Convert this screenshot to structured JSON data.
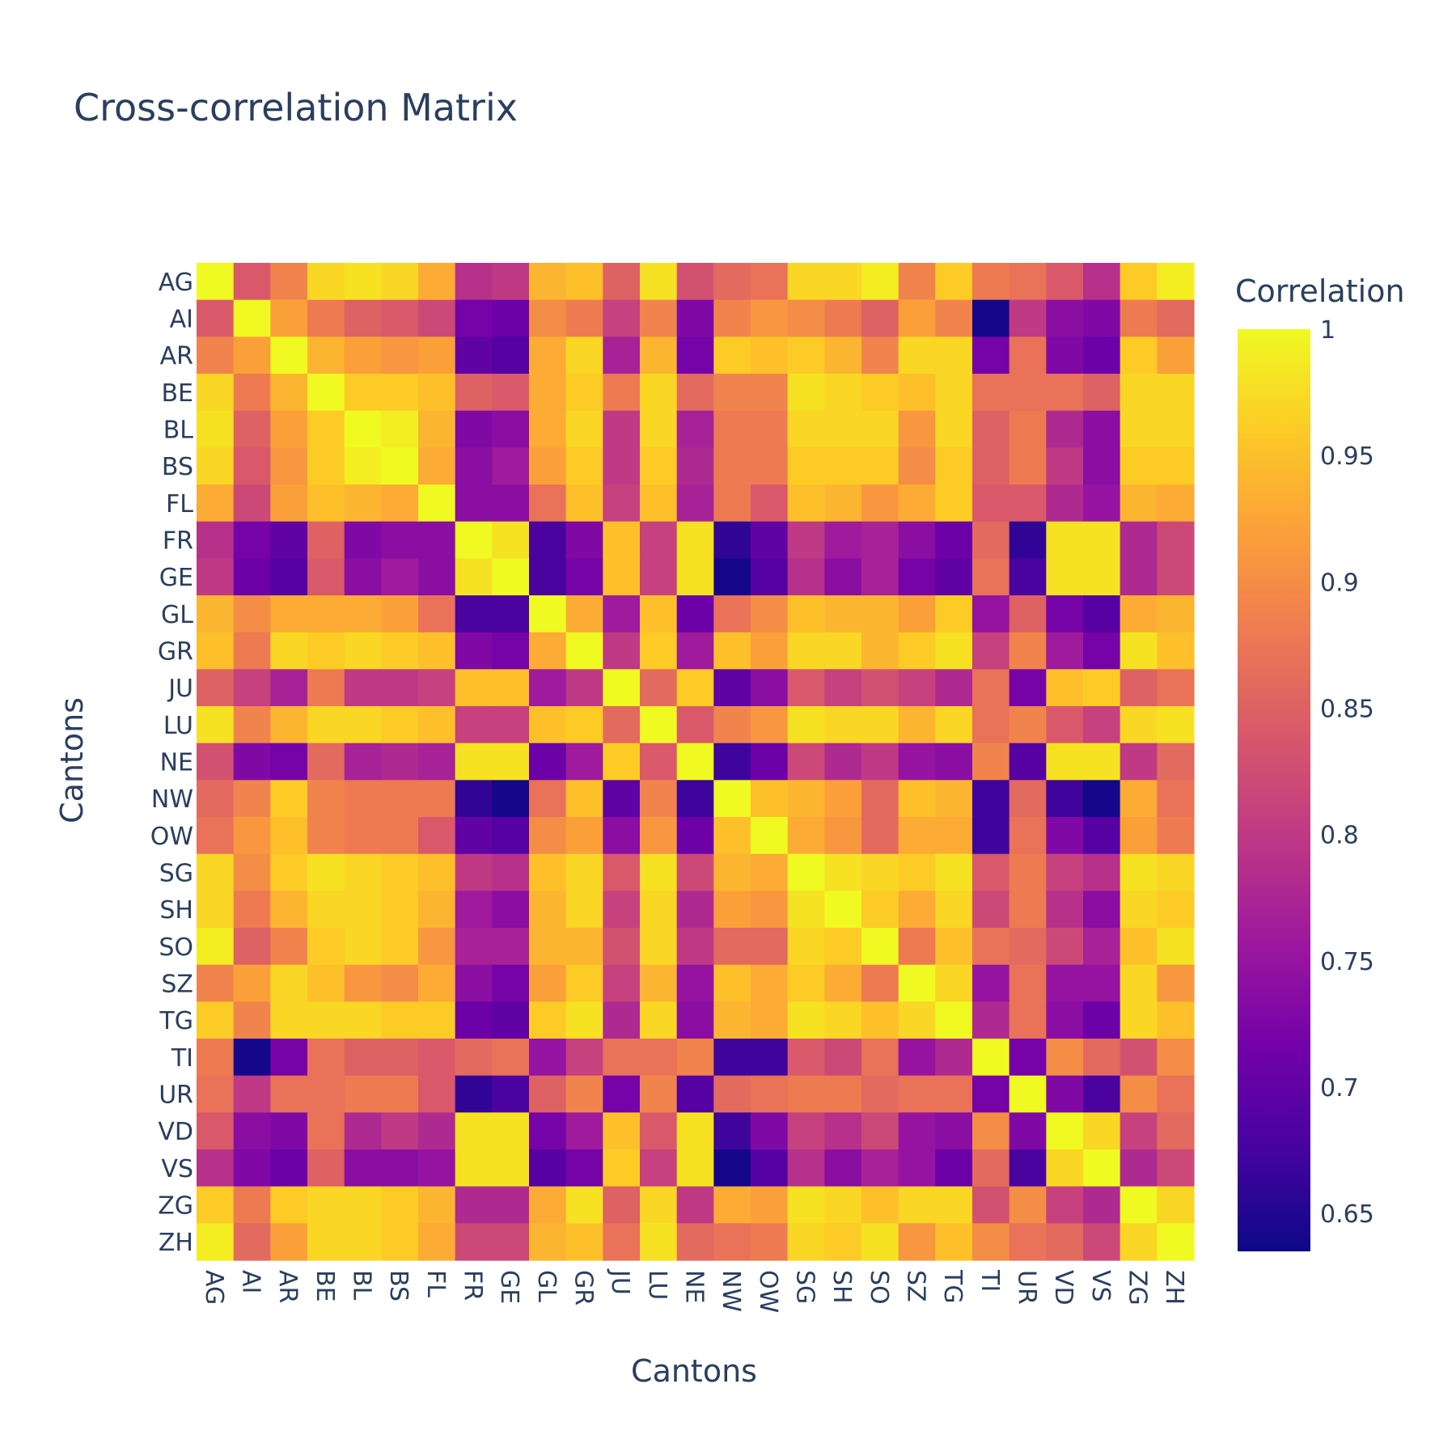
{
  "chart_data": {
    "type": "heatmap",
    "title": "Cross-correlation Matrix",
    "xlabel": "Cantons",
    "ylabel": "Cantons",
    "colorbar": {
      "title": "Correlation",
      "range": [
        0.635,
        1.0
      ],
      "ticks": [
        1,
        0.95,
        0.9,
        0.85,
        0.8,
        0.75,
        0.7,
        0.65
      ],
      "colorscale": "plasma"
    },
    "labels": [
      "AG",
      "AI",
      "AR",
      "BE",
      "BL",
      "BS",
      "FL",
      "FR",
      "GE",
      "GL",
      "GR",
      "JU",
      "LU",
      "NE",
      "NW",
      "OW",
      "SG",
      "SH",
      "SO",
      "SZ",
      "TG",
      "TI",
      "UR",
      "VD",
      "VS",
      "ZG",
      "ZH"
    ],
    "z": [
      [
        1.0,
        0.84,
        0.89,
        0.97,
        0.98,
        0.97,
        0.93,
        0.79,
        0.8,
        0.94,
        0.95,
        0.85,
        0.98,
        0.83,
        0.86,
        0.87,
        0.97,
        0.97,
        0.99,
        0.89,
        0.96,
        0.88,
        0.87,
        0.84,
        0.79,
        0.96,
        0.99
      ],
      [
        0.84,
        1.0,
        0.92,
        0.88,
        0.85,
        0.84,
        0.82,
        0.72,
        0.71,
        0.9,
        0.88,
        0.81,
        0.89,
        0.73,
        0.89,
        0.91,
        0.9,
        0.88,
        0.85,
        0.92,
        0.89,
        0.64,
        0.8,
        0.74,
        0.73,
        0.88,
        0.86
      ],
      [
        0.89,
        0.92,
        1.0,
        0.94,
        0.92,
        0.91,
        0.92,
        0.7,
        0.69,
        0.93,
        0.97,
        0.77,
        0.94,
        0.72,
        0.96,
        0.95,
        0.96,
        0.94,
        0.89,
        0.97,
        0.97,
        0.72,
        0.87,
        0.73,
        0.71,
        0.96,
        0.92
      ],
      [
        0.97,
        0.88,
        0.94,
        1.0,
        0.96,
        0.96,
        0.95,
        0.85,
        0.84,
        0.93,
        0.96,
        0.88,
        0.97,
        0.86,
        0.89,
        0.89,
        0.98,
        0.97,
        0.96,
        0.95,
        0.97,
        0.87,
        0.87,
        0.87,
        0.85,
        0.97,
        0.97
      ],
      [
        0.98,
        0.85,
        0.92,
        0.96,
        1.0,
        0.99,
        0.94,
        0.73,
        0.74,
        0.93,
        0.97,
        0.8,
        0.97,
        0.77,
        0.88,
        0.88,
        0.97,
        0.97,
        0.97,
        0.91,
        0.97,
        0.85,
        0.88,
        0.78,
        0.74,
        0.97,
        0.97
      ],
      [
        0.97,
        0.84,
        0.91,
        0.96,
        0.99,
        1.0,
        0.93,
        0.74,
        0.76,
        0.92,
        0.96,
        0.8,
        0.96,
        0.78,
        0.88,
        0.88,
        0.96,
        0.96,
        0.96,
        0.9,
        0.96,
        0.85,
        0.88,
        0.8,
        0.74,
        0.96,
        0.96
      ],
      [
        0.93,
        0.82,
        0.92,
        0.95,
        0.94,
        0.93,
        1.0,
        0.74,
        0.74,
        0.87,
        0.95,
        0.81,
        0.95,
        0.77,
        0.88,
        0.84,
        0.95,
        0.94,
        0.91,
        0.93,
        0.96,
        0.84,
        0.84,
        0.78,
        0.75,
        0.94,
        0.93
      ],
      [
        0.79,
        0.72,
        0.7,
        0.85,
        0.73,
        0.74,
        0.74,
        1.0,
        0.98,
        0.68,
        0.73,
        0.95,
        0.81,
        0.98,
        0.66,
        0.7,
        0.8,
        0.76,
        0.77,
        0.74,
        0.71,
        0.86,
        0.66,
        0.98,
        0.98,
        0.78,
        0.82
      ],
      [
        0.8,
        0.71,
        0.69,
        0.84,
        0.74,
        0.76,
        0.74,
        0.98,
        1.0,
        0.68,
        0.72,
        0.95,
        0.81,
        0.98,
        0.64,
        0.69,
        0.79,
        0.74,
        0.77,
        0.72,
        0.7,
        0.87,
        0.68,
        0.98,
        0.98,
        0.78,
        0.82
      ],
      [
        0.94,
        0.9,
        0.93,
        0.93,
        0.93,
        0.92,
        0.87,
        0.68,
        0.68,
        1.0,
        0.93,
        0.76,
        0.95,
        0.71,
        0.87,
        0.9,
        0.95,
        0.94,
        0.94,
        0.92,
        0.96,
        0.75,
        0.85,
        0.72,
        0.69,
        0.93,
        0.94
      ],
      [
        0.95,
        0.88,
        0.97,
        0.96,
        0.97,
        0.96,
        0.95,
        0.73,
        0.72,
        0.93,
        1.0,
        0.8,
        0.96,
        0.76,
        0.95,
        0.92,
        0.97,
        0.97,
        0.94,
        0.96,
        0.98,
        0.81,
        0.89,
        0.76,
        0.72,
        0.98,
        0.95
      ],
      [
        0.85,
        0.81,
        0.77,
        0.88,
        0.8,
        0.8,
        0.81,
        0.95,
        0.95,
        0.76,
        0.8,
        1.0,
        0.86,
        0.96,
        0.7,
        0.74,
        0.84,
        0.81,
        0.83,
        0.81,
        0.78,
        0.87,
        0.72,
        0.95,
        0.96,
        0.85,
        0.87
      ],
      [
        0.98,
        0.89,
        0.94,
        0.97,
        0.97,
        0.96,
        0.95,
        0.81,
        0.81,
        0.95,
        0.96,
        0.86,
        1.0,
        0.84,
        0.89,
        0.91,
        0.98,
        0.97,
        0.97,
        0.94,
        0.97,
        0.87,
        0.89,
        0.84,
        0.81,
        0.97,
        0.98
      ],
      [
        0.83,
        0.73,
        0.72,
        0.86,
        0.77,
        0.78,
        0.77,
        0.98,
        0.98,
        0.71,
        0.76,
        0.96,
        0.84,
        1.0,
        0.67,
        0.71,
        0.82,
        0.78,
        0.8,
        0.75,
        0.74,
        0.89,
        0.69,
        0.98,
        0.98,
        0.8,
        0.86
      ],
      [
        0.86,
        0.89,
        0.96,
        0.89,
        0.88,
        0.88,
        0.88,
        0.66,
        0.64,
        0.87,
        0.95,
        0.7,
        0.89,
        0.67,
        1.0,
        0.95,
        0.94,
        0.92,
        0.86,
        0.95,
        0.94,
        0.67,
        0.86,
        0.67,
        0.64,
        0.93,
        0.87
      ],
      [
        0.87,
        0.91,
        0.95,
        0.89,
        0.88,
        0.88,
        0.84,
        0.7,
        0.69,
        0.9,
        0.92,
        0.74,
        0.91,
        0.71,
        0.95,
        1.0,
        0.93,
        0.91,
        0.86,
        0.93,
        0.93,
        0.67,
        0.87,
        0.73,
        0.69,
        0.92,
        0.88
      ],
      [
        0.97,
        0.9,
        0.96,
        0.98,
        0.97,
        0.96,
        0.95,
        0.8,
        0.79,
        0.95,
        0.97,
        0.84,
        0.98,
        0.82,
        0.94,
        0.93,
        1.0,
        0.98,
        0.97,
        0.96,
        0.98,
        0.84,
        0.88,
        0.81,
        0.79,
        0.98,
        0.97
      ],
      [
        0.97,
        0.88,
        0.94,
        0.97,
        0.97,
        0.96,
        0.94,
        0.76,
        0.74,
        0.94,
        0.97,
        0.81,
        0.97,
        0.78,
        0.92,
        0.91,
        0.98,
        1.0,
        0.96,
        0.93,
        0.97,
        0.82,
        0.88,
        0.79,
        0.74,
        0.97,
        0.96
      ],
      [
        0.99,
        0.85,
        0.89,
        0.96,
        0.97,
        0.96,
        0.91,
        0.77,
        0.77,
        0.94,
        0.94,
        0.83,
        0.97,
        0.8,
        0.86,
        0.86,
        0.97,
        0.96,
        1.0,
        0.88,
        0.95,
        0.87,
        0.86,
        0.82,
        0.77,
        0.95,
        0.98
      ],
      [
        0.89,
        0.92,
        0.97,
        0.95,
        0.91,
        0.9,
        0.93,
        0.74,
        0.72,
        0.92,
        0.96,
        0.81,
        0.94,
        0.75,
        0.95,
        0.93,
        0.96,
        0.93,
        0.88,
        1.0,
        0.97,
        0.75,
        0.87,
        0.75,
        0.75,
        0.97,
        0.91
      ],
      [
        0.96,
        0.89,
        0.97,
        0.97,
        0.97,
        0.96,
        0.96,
        0.71,
        0.7,
        0.96,
        0.98,
        0.78,
        0.97,
        0.74,
        0.94,
        0.93,
        0.98,
        0.97,
        0.95,
        0.97,
        1.0,
        0.78,
        0.87,
        0.74,
        0.71,
        0.97,
        0.95
      ],
      [
        0.88,
        0.64,
        0.72,
        0.87,
        0.85,
        0.85,
        0.84,
        0.86,
        0.87,
        0.75,
        0.81,
        0.87,
        0.87,
        0.89,
        0.67,
        0.67,
        0.84,
        0.82,
        0.87,
        0.75,
        0.78,
        1.0,
        0.72,
        0.9,
        0.86,
        0.83,
        0.9
      ],
      [
        0.87,
        0.8,
        0.87,
        0.87,
        0.88,
        0.88,
        0.84,
        0.66,
        0.68,
        0.85,
        0.89,
        0.72,
        0.89,
        0.69,
        0.86,
        0.87,
        0.88,
        0.88,
        0.86,
        0.87,
        0.87,
        0.72,
        1.0,
        0.73,
        0.68,
        0.9,
        0.87
      ],
      [
        0.84,
        0.74,
        0.73,
        0.87,
        0.78,
        0.8,
        0.78,
        0.98,
        0.98,
        0.72,
        0.76,
        0.95,
        0.84,
        0.98,
        0.67,
        0.73,
        0.81,
        0.79,
        0.82,
        0.75,
        0.74,
        0.9,
        0.73,
        1.0,
        0.97,
        0.81,
        0.86
      ],
      [
        0.79,
        0.73,
        0.71,
        0.85,
        0.74,
        0.74,
        0.75,
        0.98,
        0.98,
        0.69,
        0.72,
        0.96,
        0.81,
        0.98,
        0.64,
        0.69,
        0.79,
        0.74,
        0.77,
        0.75,
        0.71,
        0.86,
        0.68,
        0.97,
        1.0,
        0.78,
        0.82
      ],
      [
        0.96,
        0.88,
        0.96,
        0.97,
        0.97,
        0.96,
        0.94,
        0.78,
        0.78,
        0.93,
        0.98,
        0.85,
        0.97,
        0.8,
        0.93,
        0.92,
        0.98,
        0.97,
        0.95,
        0.97,
        0.97,
        0.83,
        0.9,
        0.81,
        0.78,
        1.0,
        0.97
      ],
      [
        0.99,
        0.86,
        0.92,
        0.97,
        0.97,
        0.96,
        0.93,
        0.82,
        0.82,
        0.94,
        0.95,
        0.87,
        0.98,
        0.86,
        0.87,
        0.88,
        0.97,
        0.96,
        0.98,
        0.91,
        0.95,
        0.9,
        0.87,
        0.86,
        0.82,
        0.97,
        1.0
      ]
    ]
  }
}
